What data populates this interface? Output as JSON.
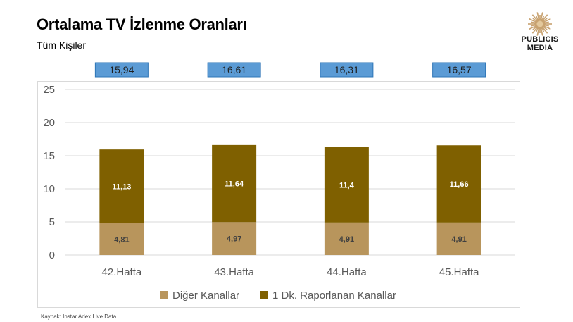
{
  "header": {
    "title": "Ortalama TV İzlenme Oranları",
    "subtitle": "Tüm Kişiler"
  },
  "logo": {
    "icon": "sun-icon",
    "line1": "PUBLICIS",
    "line2": "MEDIA",
    "color": "#c8a270"
  },
  "footer": {
    "source": "Kaynak: Instar  Adex Live Data"
  },
  "colors": {
    "other_channels": "#b8955c",
    "reported_channels": "#7f6000",
    "total_box_fill": "#5b9bd5",
    "total_box_border": "#2e75b6",
    "gridline": "#d9d9d9",
    "axis_text": "#595959"
  },
  "chart_data": {
    "type": "bar",
    "stacked": true,
    "categories": [
      "42.Hafta",
      "43.Hafta",
      "44.Hafta",
      "45.Hafta"
    ],
    "series": [
      {
        "name": "Diğer Kanallar",
        "values": [
          4.81,
          4.97,
          4.91,
          4.91
        ],
        "labels": [
          "4,81",
          "4,97",
          "4,91",
          "4,91"
        ]
      },
      {
        "name": "1 Dk. Raporlanan Kanallar",
        "values": [
          11.13,
          11.64,
          11.4,
          11.66
        ],
        "labels": [
          "11,13",
          "11,64",
          "11,4",
          "11,66"
        ]
      }
    ],
    "totals": [
      15.94,
      16.61,
      16.31,
      16.57
    ],
    "total_labels": [
      "15,94",
      "16,61",
      "16,31",
      "16,57"
    ],
    "ylim": [
      0,
      25
    ],
    "yticks": [
      "0",
      "5",
      "10",
      "15",
      "20",
      "25"
    ],
    "grid": true,
    "legend_position": "bottom"
  }
}
